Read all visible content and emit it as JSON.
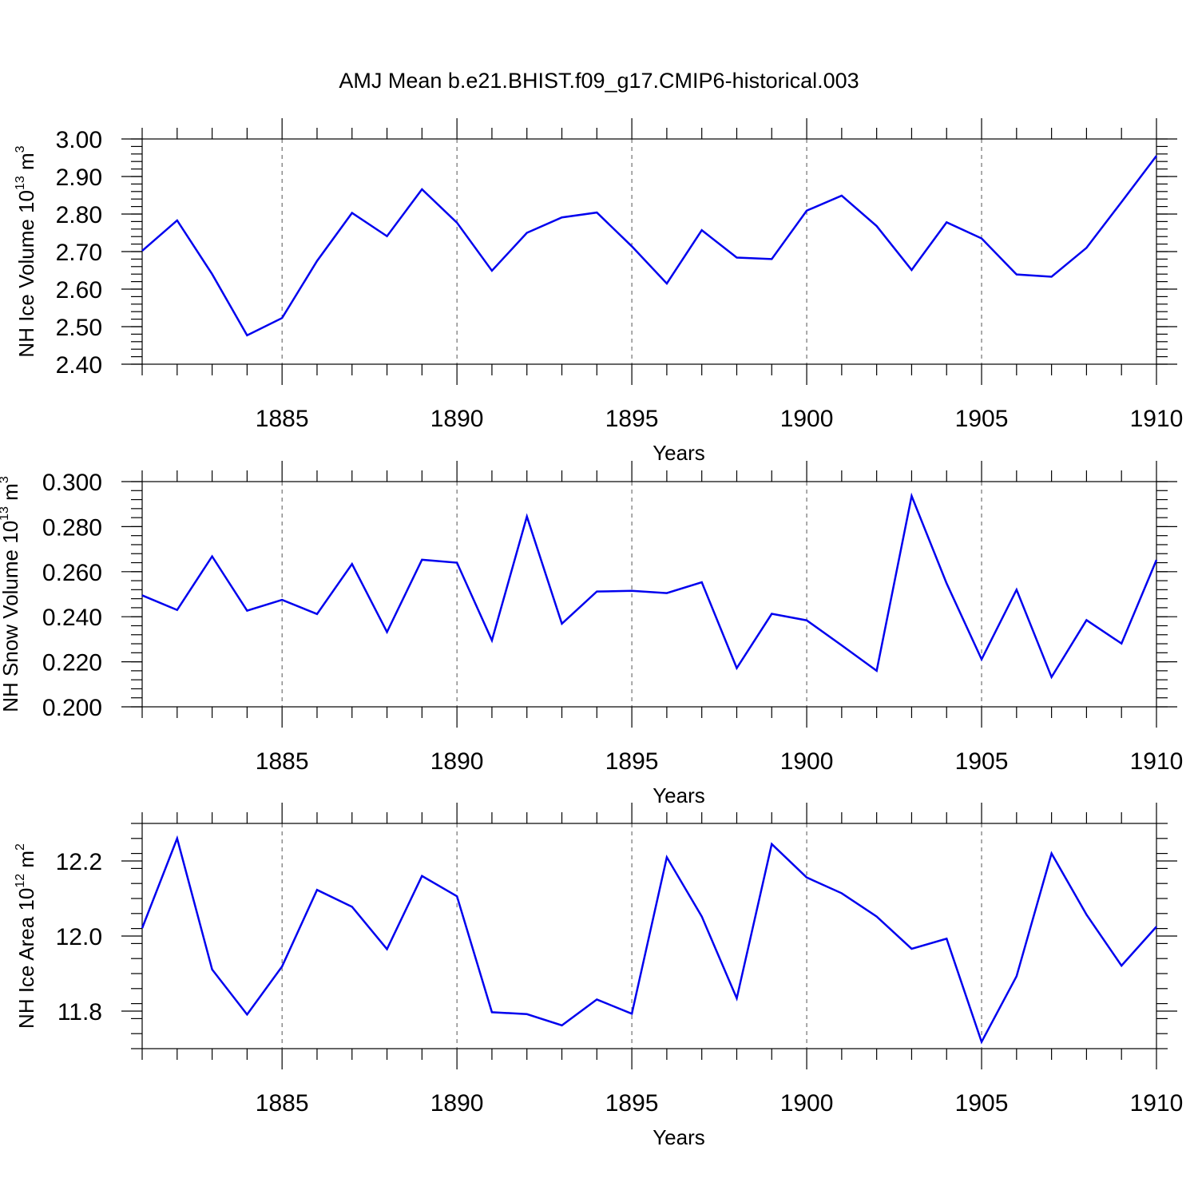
{
  "title": "AMJ Mean b.e21.BHIST.f09_g17.CMIP6-historical.003",
  "chart_data": [
    {
      "type": "line",
      "ylabel_main": "NH Ice Volume 10",
      "ylabel_exp": "13",
      "ylabel_unit": " m",
      "ylabel_unit_exp": "3",
      "xlabel": "Years",
      "xlim": [
        1881,
        1910
      ],
      "ylim": [
        2.4,
        3.0
      ],
      "xticks": [
        1885,
        1890,
        1895,
        1900,
        1905,
        1910
      ],
      "yticks": [
        2.4,
        2.5,
        2.6,
        2.7,
        2.8,
        2.9,
        3.0
      ],
      "ytick_labels": [
        "2.40",
        "2.50",
        "2.60",
        "2.70",
        "2.80",
        "2.90",
        "3.00"
      ],
      "y_minor_step": 0.02,
      "grid": "x-dashed",
      "color": "#0000ee",
      "x": [
        1881,
        1882,
        1883,
        1884,
        1885,
        1886,
        1887,
        1888,
        1889,
        1890,
        1891,
        1892,
        1893,
        1894,
        1895,
        1896,
        1897,
        1898,
        1899,
        1900,
        1901,
        1902,
        1903,
        1904,
        1905,
        1906,
        1907,
        1908,
        1909,
        1910
      ],
      "values": [
        2.702,
        2.783,
        2.64,
        2.477,
        2.523,
        2.675,
        2.803,
        2.741,
        2.866,
        2.777,
        2.649,
        2.75,
        2.791,
        2.804,
        2.714,
        2.615,
        2.757,
        2.684,
        2.68,
        2.809,
        2.849,
        2.768,
        2.651,
        2.778,
        2.735,
        2.639,
        2.633,
        2.71,
        2.832,
        2.955
      ]
    },
    {
      "type": "line",
      "ylabel_main": "NH Snow Volume 10",
      "ylabel_exp": "13",
      "ylabel_unit": " m",
      "ylabel_unit_exp": "3",
      "xlabel": "Years",
      "xlim": [
        1881,
        1910
      ],
      "ylim": [
        0.2,
        0.3
      ],
      "xticks": [
        1885,
        1890,
        1895,
        1900,
        1905,
        1910
      ],
      "yticks": [
        0.2,
        0.22,
        0.24,
        0.26,
        0.28,
        0.3
      ],
      "ytick_labels": [
        "0.200",
        "0.220",
        "0.240",
        "0.260",
        "0.280",
        "0.300"
      ],
      "y_minor_step": 0.004,
      "grid": "x-dashed",
      "color": "#0000ee",
      "x": [
        1881,
        1882,
        1883,
        1884,
        1885,
        1886,
        1887,
        1888,
        1889,
        1890,
        1891,
        1892,
        1893,
        1894,
        1895,
        1896,
        1897,
        1898,
        1899,
        1900,
        1901,
        1902,
        1903,
        1904,
        1905,
        1906,
        1907,
        1908,
        1909,
        1910
      ],
      "values": [
        0.2495,
        0.243,
        0.2668,
        0.2427,
        0.2475,
        0.2412,
        0.2634,
        0.2332,
        0.2653,
        0.264,
        0.2295,
        0.2845,
        0.2369,
        0.2512,
        0.2515,
        0.2505,
        0.2553,
        0.2172,
        0.2413,
        0.2384,
        0.2273,
        0.216,
        0.2936,
        0.2548,
        0.2211,
        0.252,
        0.2132,
        0.2385,
        0.2281,
        0.2652
      ]
    },
    {
      "type": "line",
      "ylabel_main": "NH Ice Area 10",
      "ylabel_exp": "12",
      "ylabel_unit": " m",
      "ylabel_unit_exp": "2",
      "xlabel": "Years",
      "xlim": [
        1881,
        1910
      ],
      "ylim": [
        11.7,
        12.3
      ],
      "xticks": [
        1885,
        1890,
        1895,
        1900,
        1905,
        1910
      ],
      "yticks": [
        11.8,
        12.0,
        12.2
      ],
      "ytick_labels": [
        "11.8",
        "12.0",
        "12.2"
      ],
      "y_minor_step": 0.04,
      "grid": "x-dashed",
      "color": "#0000ee",
      "x": [
        1881,
        1882,
        1883,
        1884,
        1885,
        1886,
        1887,
        1888,
        1889,
        1890,
        1891,
        1892,
        1893,
        1894,
        1895,
        1896,
        1897,
        1898,
        1899,
        1900,
        1901,
        1902,
        1903,
        1904,
        1905,
        1906,
        1907,
        1908,
        1909,
        1910
      ],
      "values": [
        12.021,
        12.26,
        11.911,
        11.791,
        11.919,
        12.123,
        12.078,
        11.965,
        12.16,
        12.106,
        11.797,
        11.792,
        11.762,
        11.831,
        11.793,
        12.21,
        12.052,
        11.834,
        12.245,
        12.156,
        12.114,
        12.052,
        11.966,
        11.993,
        11.718,
        11.893,
        12.22,
        12.057,
        11.921,
        12.025
      ]
    }
  ]
}
